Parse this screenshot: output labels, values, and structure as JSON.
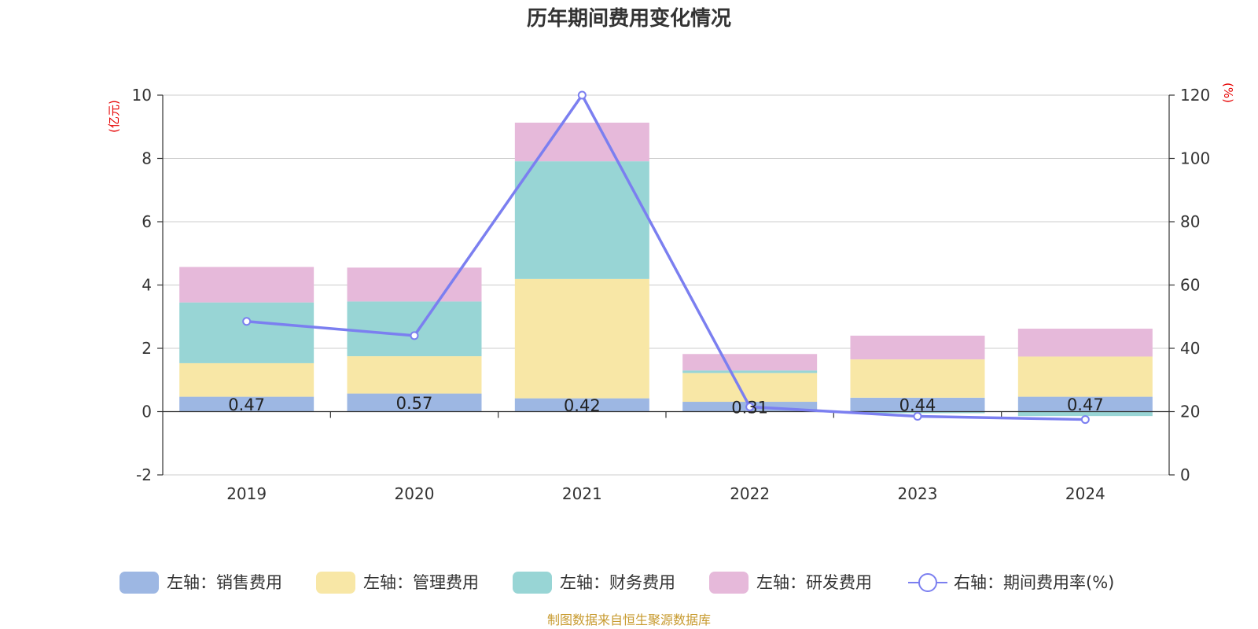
{
  "chart_data": {
    "type": "bar",
    "title": "历年期间费用变化情况",
    "categories": [
      "2019",
      "2020",
      "2021",
      "2022",
      "2023",
      "2024"
    ],
    "left_axis": {
      "unit": "(亿元)",
      "ylim": [
        -2,
        10
      ],
      "ticks": [
        "10",
        "8",
        "6",
        "4",
        "2",
        "0",
        "-2"
      ]
    },
    "right_axis": {
      "unit": "(%)",
      "ylim": [
        0,
        120
      ],
      "ticks": [
        "120",
        "100",
        "80",
        "60",
        "40",
        "20",
        "0"
      ]
    },
    "series": [
      {
        "name": "左轴：销售费用",
        "type": "bar",
        "axis": "left",
        "color": "#9db7e3",
        "values": [
          0.47,
          0.57,
          0.42,
          0.31,
          0.44,
          0.47
        ]
      },
      {
        "name": "左轴：管理费用",
        "type": "bar",
        "axis": "left",
        "color": "#f8e7a6",
        "values": [
          1.06,
          1.18,
          3.77,
          0.91,
          1.21,
          1.27
        ]
      },
      {
        "name": "左轴：财务费用",
        "type": "bar",
        "axis": "left",
        "color": "#98d5d5",
        "values": [
          1.92,
          1.73,
          3.72,
          0.08,
          -0.05,
          -0.14
        ]
      },
      {
        "name": "左轴：研发费用",
        "type": "bar",
        "axis": "left",
        "color": "#e6b9da",
        "values": [
          1.12,
          1.07,
          1.22,
          0.52,
          0.75,
          0.88
        ]
      },
      {
        "name": "右轴：期间费用率(%)",
        "type": "line",
        "axis": "right",
        "color": "#7b7ff0",
        "values": [
          48.5,
          44.0,
          120.0,
          21.5,
          18.5,
          17.5
        ]
      }
    ],
    "data_labels": [
      "0.47",
      "0.57",
      "0.42",
      "0.31",
      "0.44",
      "0.47"
    ],
    "grid": true,
    "legend_position": "bottom"
  },
  "source_note": "制图数据来自恒生聚源数据库"
}
